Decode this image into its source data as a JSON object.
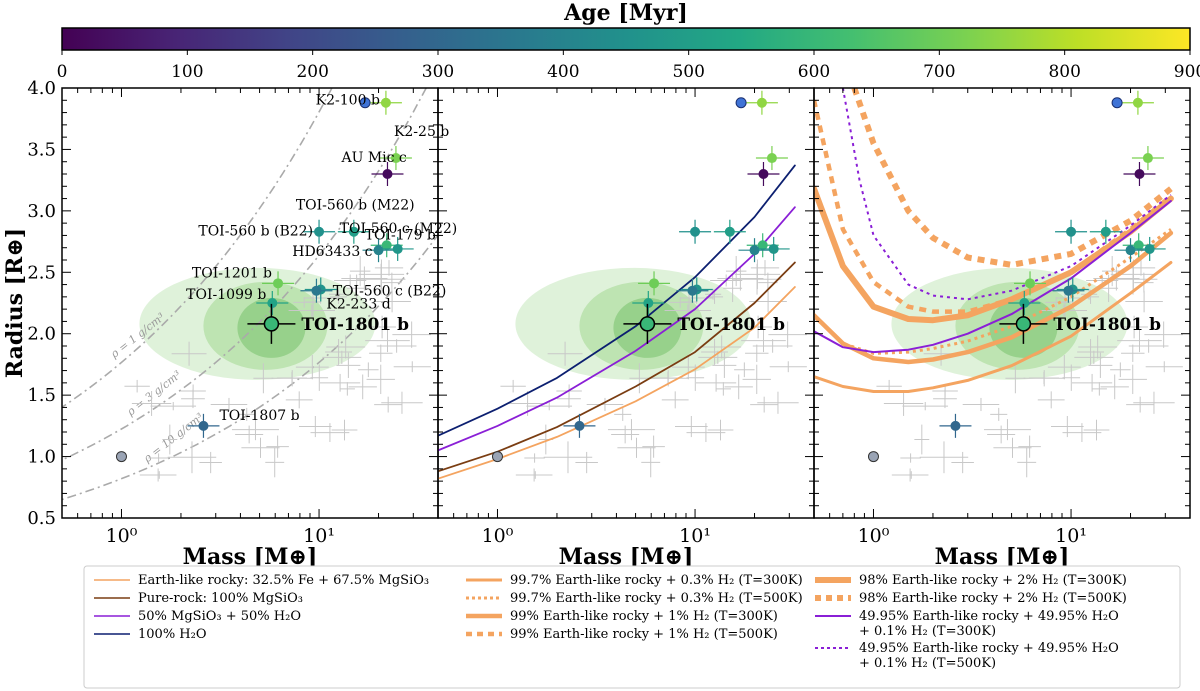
{
  "colorbar": {
    "title": "Age [Myr]",
    "min": 0,
    "max": 900,
    "ticks": [
      "0",
      "100",
      "200",
      "300",
      "400",
      "500",
      "600",
      "700",
      "800",
      "900"
    ],
    "stops": [
      "#440154",
      "#482475",
      "#414487",
      "#355f8d",
      "#2a788e",
      "#21918c",
      "#22a884",
      "#44bf70",
      "#7ad151",
      "#bddf26",
      "#fde725"
    ]
  },
  "chart_data": [
    {
      "type": "scatter",
      "panel": "left",
      "xlabel": "Mass [M⊕]",
      "ylabel": "Radius [R⊕]",
      "xscale": "log",
      "xlim": [
        0.5,
        40
      ],
      "ylim": [
        0.5,
        4.0
      ],
      "xticks": [
        "10⁰",
        "10¹"
      ],
      "yticks": [
        "0.5",
        "1.0",
        "1.5",
        "2.0",
        "2.5",
        "3.0",
        "3.5",
        "4.0"
      ],
      "highlight": {
        "name": "TOI-1801 b",
        "mass": 5.74,
        "radius": 2.08,
        "age": 600
      },
      "planets": [
        {
          "name": "K2-100 b",
          "mass": 21.8,
          "radius": 3.88,
          "age": 750
        },
        {
          "name": "K2-25 b",
          "mass": 24.5,
          "radius": 3.43,
          "age": 720
        },
        {
          "name": "AU Mic c",
          "mass": 22.2,
          "radius": 3.3,
          "age": 22
        },
        {
          "name": "TOI-560 b (M22)",
          "mass": 15.0,
          "radius": 2.83,
          "age": 500
        },
        {
          "name": "TOI-560 b (B22)",
          "mass": 10.0,
          "radius": 2.83,
          "age": 450
        },
        {
          "name": "TOI-179 b",
          "mass": 22.0,
          "radius": 2.72,
          "age": 600
        },
        {
          "name": "HD63433 c",
          "mass": 20.0,
          "radius": 2.68,
          "age": 400
        },
        {
          "name": "TOI-560 c (M22)",
          "mass": 25.0,
          "radius": 2.69,
          "age": 470
        },
        {
          "name": "TOI-1201 b",
          "mass": 6.2,
          "radius": 2.41,
          "age": 700
        },
        {
          "name": "TOI-560 c (B22)",
          "mass": 10.2,
          "radius": 2.36,
          "age": 460
        },
        {
          "name": "K2-233 d",
          "mass": 9.7,
          "radius": 2.35,
          "age": 360
        },
        {
          "name": "TOI-1099 b",
          "mass": 5.8,
          "radius": 2.25,
          "age": 520
        },
        {
          "name": "TOI-1807 b",
          "mass": 2.6,
          "radius": 1.25,
          "age": 300
        }
      ],
      "solar_system": [
        {
          "name": "Earth",
          "mass": 1.0,
          "radius": 1.0
        }
      ],
      "density_labels": [
        "ρ = 1 g/cm³",
        "ρ = 3 g/cm³",
        "ρ = 10 g/cm³"
      ]
    },
    {
      "type": "line",
      "panel": "middle",
      "xlabel": "Mass [M⊕]",
      "xscale": "log",
      "xlim": [
        0.5,
        40
      ],
      "ylim": [
        0.5,
        4.0
      ],
      "xticks": [
        "10⁰",
        "10¹"
      ],
      "highlight_label": "TOI-1801 b",
      "series": [
        {
          "name": "Earth-like rocky: 32.5% Fe + 67.5% MgSiO₃",
          "color": "#f4a460",
          "x": [
            0.5,
            1,
            2,
            5,
            10,
            20,
            32
          ],
          "y": [
            0.82,
            0.98,
            1.16,
            1.45,
            1.71,
            2.05,
            2.38
          ]
        },
        {
          "name": "Pure-rock: 100% MgSiO₃",
          "color": "#7a3d12",
          "x": [
            0.5,
            1,
            2,
            5,
            10,
            20,
            32
          ],
          "y": [
            0.88,
            1.04,
            1.24,
            1.57,
            1.85,
            2.25,
            2.58
          ]
        },
        {
          "name": "50% MgSiO₃ + 50% H₂O",
          "color": "#8a1fd6",
          "x": [
            0.5,
            1,
            2,
            5,
            10,
            20,
            32
          ],
          "y": [
            1.05,
            1.25,
            1.48,
            1.86,
            2.2,
            2.65,
            3.03
          ]
        },
        {
          "name": "100% H₂O",
          "color": "#0c1f70",
          "x": [
            0.5,
            1,
            2,
            5,
            10,
            20,
            32
          ],
          "y": [
            1.17,
            1.39,
            1.64,
            2.06,
            2.46,
            2.95,
            3.37
          ]
        }
      ]
    },
    {
      "type": "line",
      "panel": "right",
      "xlabel": "Mass [M⊕]",
      "xscale": "log",
      "xlim": [
        0.5,
        40
      ],
      "ylim": [
        0.5,
        4.0
      ],
      "xticks": [
        "10⁰",
        "10¹"
      ],
      "highlight_label": "TOI-1801 b",
      "series": [
        {
          "name": "99.7% Earth-like rocky + 0.3% H₂ (T=300K)",
          "color": "#f4a460",
          "dash": "solid",
          "width": 3,
          "x": [
            0.5,
            0.7,
            1,
            1.5,
            2,
            3,
            5,
            10,
            20,
            32
          ],
          "y": [
            1.65,
            1.57,
            1.53,
            1.53,
            1.56,
            1.62,
            1.74,
            1.98,
            2.33,
            2.58
          ]
        },
        {
          "name": "99.7% Earth-like rocky + 0.3% H₂ (T=500K)",
          "color": "#f4a460",
          "dash": "dot",
          "width": 3,
          "x": [
            0.5,
            0.7,
            1,
            1.5,
            2,
            3,
            5,
            10,
            20,
            32
          ],
          "y": [
            2.15,
            1.92,
            1.84,
            1.85,
            1.88,
            1.94,
            2.06,
            2.3,
            2.62,
            2.85
          ]
        },
        {
          "name": "99% Earth-like rocky + 1% H₂ (T=300K)",
          "color": "#f4a460",
          "dash": "solid",
          "width": 4.5,
          "x": [
            0.5,
            0.7,
            1,
            1.5,
            2,
            3,
            5,
            10,
            20,
            32
          ],
          "y": [
            2.15,
            1.92,
            1.8,
            1.77,
            1.79,
            1.85,
            1.97,
            2.22,
            2.55,
            2.82
          ]
        },
        {
          "name": "99% Earth-like rocky + 1% H₂ (T=500K)",
          "color": "#f4a460",
          "dash": "dot",
          "width": 4.5,
          "x": [
            0.5,
            0.7,
            1,
            1.5,
            2,
            3,
            5,
            10,
            20,
            32
          ],
          "y": [
            3.9,
            2.85,
            2.42,
            2.22,
            2.18,
            2.18,
            2.28,
            2.5,
            2.85,
            3.12
          ]
        },
        {
          "name": "98% Earth-like rocky + 2% H₂ (T=300K)",
          "color": "#f4a460",
          "dash": "solid",
          "width": 6,
          "x": [
            0.5,
            0.7,
            1,
            1.5,
            2,
            3,
            5,
            10,
            20,
            32
          ],
          "y": [
            3.18,
            2.55,
            2.22,
            2.12,
            2.11,
            2.15,
            2.28,
            2.5,
            2.83,
            3.1
          ]
        },
        {
          "name": "98% Earth-like rocky + 2% H₂ (T=500K)",
          "color": "#f4a460",
          "dash": "dot",
          "width": 6,
          "x": [
            0.8,
            1,
            1.5,
            2,
            3,
            5,
            10,
            20,
            32
          ],
          "y": [
            4.0,
            3.55,
            3.0,
            2.78,
            2.62,
            2.56,
            2.65,
            2.92,
            3.18
          ]
        },
        {
          "name": "49.95% Earth-like rocky + 49.95% H₂O + 0.1% H₂ (T=300K)",
          "color": "#8a1fd6",
          "dash": "solid",
          "width": 2,
          "x": [
            0.5,
            0.7,
            1,
            1.5,
            2,
            3,
            5,
            10,
            20,
            32
          ],
          "y": [
            2.02,
            1.89,
            1.85,
            1.87,
            1.91,
            2.0,
            2.16,
            2.45,
            2.82,
            3.08
          ]
        },
        {
          "name": "49.95% Earth-like rocky + 49.95% H₂O + 0.1% H₂ (T=500K)",
          "color": "#8a1fd6",
          "dash": "dot",
          "width": 2,
          "x": [
            0.7,
            0.85,
            1,
            1.5,
            2,
            3,
            5,
            10,
            20,
            32
          ],
          "y": [
            4.0,
            3.25,
            2.8,
            2.4,
            2.31,
            2.28,
            2.35,
            2.55,
            2.88,
            3.13
          ]
        }
      ]
    }
  ],
  "legend": {
    "col1": [
      {
        "label": "Earth-like rocky: 32.5% Fe + 67.5% MgSiO₃",
        "color": "#f4a460",
        "dash": "solid",
        "width": 1.5
      },
      {
        "label": "Pure-rock: 100% MgSiO₃",
        "color": "#7a3d12",
        "dash": "solid",
        "width": 1.5
      },
      {
        "label": "50% MgSiO₃ + 50% H₂O",
        "color": "#8a1fd6",
        "dash": "solid",
        "width": 1.5
      },
      {
        "label": "100% H₂O",
        "color": "#0c1f70",
        "dash": "solid",
        "width": 1.5
      }
    ],
    "col2": [
      {
        "label": "99.7% Earth-like rocky + 0.3% H₂ (T=300K)",
        "color": "#f4a460",
        "dash": "solid",
        "width": 3
      },
      {
        "label": "99.7% Earth-like rocky + 0.3% H₂ (T=500K)",
        "color": "#f4a460",
        "dash": "dot",
        "width": 3
      },
      {
        "label": "99% Earth-like rocky + 1% H₂ (T=300K)",
        "color": "#f4a460",
        "dash": "solid",
        "width": 4.5
      },
      {
        "label": "99% Earth-like rocky + 1% H₂ (T=500K)",
        "color": "#f4a460",
        "dash": "dot",
        "width": 4.5
      }
    ],
    "col3": [
      {
        "label": "98% Earth-like rocky + 2% H₂ (T=300K)",
        "color": "#f4a460",
        "dash": "solid",
        "width": 6,
        "line2": ""
      },
      {
        "label": "98% Earth-like rocky + 2% H₂ (T=500K)",
        "color": "#f4a460",
        "dash": "dot",
        "width": 6,
        "line2": ""
      },
      {
        "label": "49.95% Earth-like rocky + 49.95% H₂O",
        "line2": "+ 0.1% H₂ (T=300K)",
        "color": "#8a1fd6",
        "dash": "solid",
        "width": 2
      },
      {
        "label": "49.95% Earth-like rocky + 49.95% H₂O",
        "line2": "+ 0.1% H₂ (T=500K)",
        "color": "#8a1fd6",
        "dash": "dot",
        "width": 2
      }
    ]
  }
}
